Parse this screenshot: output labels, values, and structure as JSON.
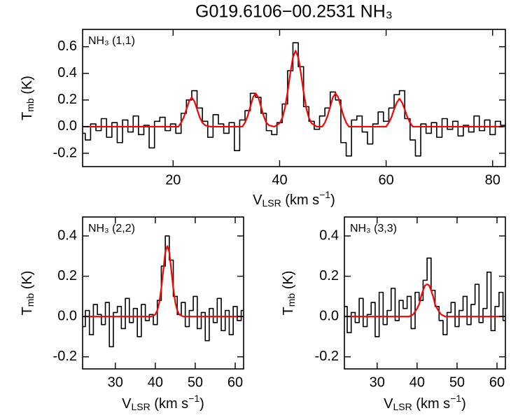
{
  "title": "G019.6106−00.2531 NH₃",
  "chart_data": [
    {
      "type": "line",
      "annotation": "NH₃ (1,1)",
      "xlabel": [
        "V",
        "LSR",
        " (km s",
        "−1",
        ")"
      ],
      "ylabel": [
        "T",
        "mb",
        " (K)"
      ],
      "xlim": [
        3,
        82.4
      ],
      "ylim": [
        -0.3,
        0.73
      ],
      "xticks": [
        20,
        40,
        60,
        80
      ],
      "yticks": [
        -0.2,
        {
          "value": 0,
          "label": "0.0"
        },
        0.2,
        0.4,
        0.6
      ],
      "series": [
        {
          "color": "#000000",
          "drawstyle": "steps-mid",
          "x": [
            3,
            4,
            5,
            6,
            7,
            8,
            9,
            10,
            11,
            12,
            13,
            14,
            15,
            16,
            17,
            18,
            19,
            20,
            21,
            22,
            23,
            24,
            25,
            26,
            27,
            28,
            29,
            30,
            31,
            32,
            33,
            34,
            35,
            36,
            37,
            38,
            39,
            40,
            41,
            42,
            43,
            44,
            45,
            46,
            47,
            48,
            49,
            50,
            51,
            52,
            53,
            54,
            55,
            56,
            57,
            58,
            59,
            60,
            61,
            62,
            63,
            64,
            65,
            66,
            67,
            68,
            69,
            70,
            71,
            72,
            73,
            74,
            75,
            76,
            77,
            78,
            79,
            80,
            81,
            82
          ],
          "values": [
            -0.05,
            -0.1,
            0.02,
            -0.03,
            0.06,
            -0.08,
            0.03,
            -0.12,
            0.05,
            -0.04,
            0.08,
            -0.06,
            0.01,
            -0.16,
            0.04,
            0.07,
            -0.03,
            0.02,
            -0.05,
            0.1,
            0.2,
            0.27,
            0.14,
            0.04,
            -0.08,
            0.09,
            0.02,
            -0.05,
            0.03,
            -0.18,
            0.05,
            0.12,
            0.25,
            0.22,
            0.1,
            -0.03,
            -0.06,
            0.03,
            0.17,
            0.42,
            0.63,
            0.45,
            0.15,
            0.04,
            -0.02,
            0.08,
            0.14,
            0.26,
            0.2,
            -0.12,
            -0.22,
            0.05,
            0.08,
            -0.04,
            -0.13,
            0.02,
            0.11,
            0.04,
            0.14,
            0.24,
            0.27,
            0.06,
            -0.1,
            -0.22,
            0.02,
            -0.05,
            0.03,
            -0.08,
            0.06,
            -0.02,
            0.04,
            -0.07,
            0.01,
            -0.04,
            0.08,
            -0.03,
            0.05,
            -0.06,
            0.04,
            0.01
          ]
        },
        {
          "color": "#ff0000",
          "drawstyle": "smooth",
          "x": [
            3,
            20,
            21,
            21.5,
            22,
            22.5,
            23,
            23.5,
            24,
            24.5,
            25,
            25.5,
            26,
            27,
            32,
            33,
            33.5,
            34,
            34.5,
            35,
            35.5,
            36,
            36.5,
            37,
            37.5,
            38,
            39,
            40,
            40.5,
            41,
            41.5,
            42,
            42.5,
            43,
            43.5,
            44,
            44.5,
            45,
            45.5,
            46,
            47,
            48,
            48.5,
            49,
            49.5,
            50,
            50.5,
            51,
            51.5,
            52,
            52.5,
            53,
            60,
            60.5,
            61,
            61.5,
            62,
            62.5,
            63,
            63.5,
            64,
            64.5,
            65,
            82
          ],
          "values": [
            0,
            0,
            0,
            0.03,
            0.07,
            0.13,
            0.19,
            0.22,
            0.19,
            0.13,
            0.07,
            0.03,
            0.01,
            0,
            0,
            0,
            0.03,
            0.08,
            0.15,
            0.22,
            0.25,
            0.22,
            0.15,
            0.08,
            0.03,
            0.01,
            0,
            0.025,
            0.065,
            0.14,
            0.26,
            0.4,
            0.52,
            0.57,
            0.52,
            0.4,
            0.26,
            0.14,
            0.065,
            0.025,
            0,
            0,
            0.03,
            0.08,
            0.15,
            0.22,
            0.25,
            0.22,
            0.15,
            0.08,
            0.03,
            0,
            0,
            0.03,
            0.07,
            0.13,
            0.18,
            0.21,
            0.18,
            0.13,
            0.07,
            0.03,
            0,
            0
          ]
        }
      ]
    },
    {
      "type": "line",
      "annotation": "NH₃ (2,2)",
      "xlabel": [
        "V",
        "LSR",
        " (km s",
        "−1",
        ")"
      ],
      "ylabel": [
        "T",
        "mb",
        " (K)"
      ],
      "xlim": [
        21.8,
        62.1
      ],
      "ylim": [
        -0.26,
        0.494
      ],
      "xticks": [
        30,
        40,
        50,
        60
      ],
      "yticks": [
        -0.2,
        {
          "value": 0,
          "label": "0.0"
        },
        0.2,
        0.4
      ],
      "series": [
        {
          "color": "#000000",
          "drawstyle": "steps-mid",
          "x": [
            22,
            23,
            24,
            25,
            26,
            27,
            28,
            29,
            30,
            31,
            32,
            33,
            34,
            35,
            36,
            37,
            38,
            39,
            40,
            41,
            42,
            43,
            44,
            45,
            46,
            47,
            48,
            49,
            50,
            51,
            52,
            53,
            54,
            55,
            56,
            57,
            58,
            59,
            60,
            61,
            62
          ],
          "values": [
            -0.05,
            0.03,
            -0.09,
            0.06,
            0.01,
            -0.04,
            0.07,
            -0.15,
            0.02,
            0.05,
            -0.06,
            0.09,
            -0.03,
            0.04,
            -0.1,
            0.06,
            -0.02,
            0.01,
            -0.04,
            0.08,
            0.25,
            0.4,
            0.28,
            0.1,
            0.01,
            0.07,
            -0.05,
            0.03,
            0.1,
            -0.06,
            0.02,
            -0.12,
            0.04,
            -0.03,
            0.09,
            -0.07,
            0.03,
            -0.09,
            0.05,
            -0.02,
            0.03
          ]
        },
        {
          "color": "#ff0000",
          "drawstyle": "smooth",
          "x": [
            22,
            39,
            40,
            40.5,
            41,
            41.5,
            42,
            42.5,
            43,
            43.5,
            44,
            44.5,
            45,
            45.5,
            46,
            47,
            62
          ],
          "values": [
            0,
            0,
            0.01,
            0.03,
            0.07,
            0.14,
            0.23,
            0.32,
            0.35,
            0.32,
            0.23,
            0.14,
            0.07,
            0.03,
            0.01,
            0,
            0
          ]
        }
      ]
    },
    {
      "type": "line",
      "annotation": "NH₃ (3,3)",
      "xlabel": [
        "V",
        "LSR",
        " (km s",
        "−1",
        ")"
      ],
      "ylabel": [
        "T",
        "mb",
        " (K)"
      ],
      "xlim": [
        21.8,
        62.1
      ],
      "ylim": [
        -0.26,
        0.494
      ],
      "xticks": [
        30,
        40,
        50,
        60
      ],
      "yticks": [
        -0.2,
        {
          "value": 0,
          "label": "0.0"
        },
        0.2,
        0.4
      ],
      "series": [
        {
          "color": "#000000",
          "drawstyle": "steps-mid",
          "x": [
            22,
            23,
            24,
            25,
            26,
            27,
            28,
            29,
            30,
            31,
            32,
            33,
            34,
            35,
            36,
            37,
            38,
            39,
            40,
            41,
            42,
            43,
            44,
            45,
            46,
            47,
            48,
            49,
            50,
            51,
            52,
            53,
            54,
            55,
            56,
            57,
            58,
            59,
            60,
            61,
            62
          ],
          "values": [
            0.05,
            -0.08,
            0.02,
            -0.03,
            0.09,
            -0.05,
            0.01,
            0.07,
            -0.1,
            0.12,
            -0.04,
            0.03,
            0.14,
            -0.02,
            0.08,
            0.04,
            0.1,
            -0.06,
            0.12,
            0.08,
            0.18,
            0.29,
            0.13,
            0.05,
            -0.02,
            -0.09,
            0.02,
            0.07,
            -0.05,
            0.03,
            0.1,
            -0.04,
            0.06,
            0.16,
            -0.03,
            0.04,
            0.22,
            -0.07,
            0.05,
            0.12,
            -0.02
          ]
        },
        {
          "color": "#ff0000",
          "drawstyle": "smooth",
          "x": [
            22,
            38,
            39,
            40,
            40.5,
            41,
            41.5,
            42,
            42.5,
            43,
            43.5,
            44,
            44.5,
            45,
            46,
            47,
            62
          ],
          "values": [
            0,
            0,
            0.01,
            0.04,
            0.06,
            0.1,
            0.13,
            0.155,
            0.16,
            0.155,
            0.13,
            0.1,
            0.06,
            0.04,
            0.01,
            0,
            0
          ]
        }
      ]
    }
  ]
}
